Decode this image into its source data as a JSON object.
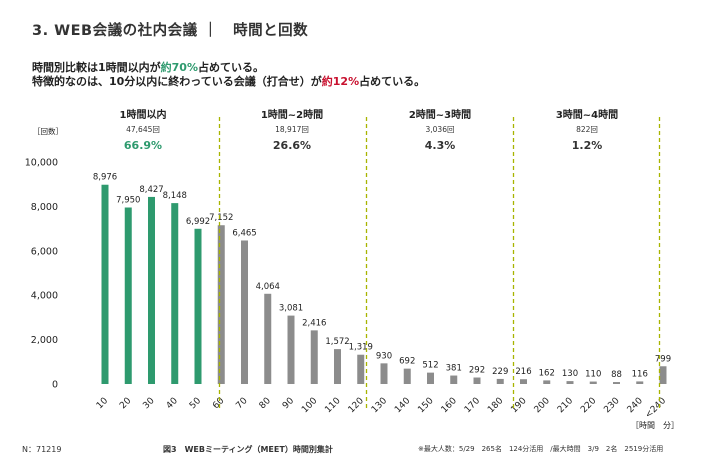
{
  "header": {
    "title": "3.  WEB会議の社内会議 ｜　時間と回数"
  },
  "summary": {
    "line1": {
      "pre": "時間別比較は1時間以内が",
      "hl": "約70%",
      "post": "占めている。"
    },
    "line2": {
      "pre": "特徴的なのは、10分以内に終わっている会議（打合せ）が",
      "hl": "約12%",
      "post": "占めている。"
    }
  },
  "colors": {
    "green": "#2e9a6e",
    "gray": "#8c8c8c",
    "divider": "#a8b400",
    "highlight_green": "#2e9a6e",
    "highlight_red": "#c8102e"
  },
  "chart_data": {
    "type": "bar",
    "ylabel": "［回数］",
    "xlabel": "［時間　分］",
    "ylim": [
      0,
      10000
    ],
    "yticks": [
      "0",
      "2,000",
      "4,000",
      "6,000",
      "8,000",
      "10,000"
    ],
    "ytick_values": [
      0,
      2000,
      4000,
      6000,
      8000,
      10000
    ],
    "grid": false,
    "categories": [
      "10",
      "20",
      "30",
      "40",
      "50",
      "60",
      "70",
      "80",
      "90",
      "100",
      "110",
      "120",
      "130",
      "140",
      "150",
      "160",
      "170",
      "180",
      "190",
      "200",
      "210",
      "220",
      "230",
      "240",
      "<240"
    ],
    "values": [
      8976,
      7950,
      8427,
      8148,
      6992,
      7152,
      6465,
      4064,
      3081,
      2416,
      1572,
      1319,
      930,
      692,
      512,
      381,
      292,
      229,
      216,
      162,
      130,
      110,
      88,
      116,
      799
    ],
    "value_labels": [
      "8,976",
      "7,950",
      "8,427",
      "8,148",
      "6,992",
      "7,152",
      "6,465",
      "4,064",
      "3,081",
      "2,416",
      "1,572",
      "1,319",
      "930",
      "692",
      "512",
      "381",
      "292",
      "229",
      "216",
      "162",
      "130",
      "110",
      "88",
      "116",
      "799"
    ],
    "bar_colors": [
      "green",
      "green",
      "green",
      "green",
      "green",
      "gray",
      "gray",
      "gray",
      "gray",
      "gray",
      "gray",
      "gray",
      "gray",
      "gray",
      "gray",
      "gray",
      "gray",
      "gray",
      "gray",
      "gray",
      "gray",
      "gray",
      "gray",
      "gray",
      "gray"
    ],
    "groups": [
      {
        "label": "1時間以内",
        "count": "47,645回",
        "percent": "66.9%",
        "color": "green"
      },
      {
        "label": "1時間~2時間",
        "count": "18,917回",
        "percent": "26.6%",
        "color": "dark"
      },
      {
        "label": "2時間~3時間",
        "count": "3,036回",
        "percent": "4.3%",
        "color": "dark"
      },
      {
        "label": "3時間~4時間",
        "count": "822回",
        "percent": "1.2%",
        "color": "dark"
      }
    ]
  },
  "footer": {
    "n_count": "N：71219",
    "caption": "図3　WEBミーティング（MEET）時間別集計",
    "footnote": "※最大人数：5/29　265名　124分活用　/最大時間　3/9　2名　2519分活用"
  }
}
